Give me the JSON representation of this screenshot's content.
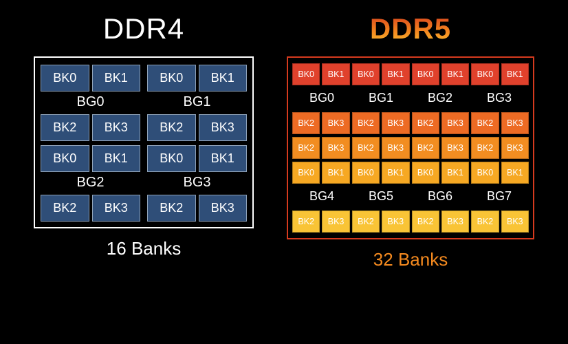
{
  "background_color": "#000000",
  "ddr4": {
    "title": "DDR4",
    "title_color": "#ffffff",
    "frame_border_color": "#ffffff",
    "cell_bg": "#2f4e78",
    "cell_border": "#8fa2b8",
    "cell_text_color": "#ffffff",
    "quadrants": [
      [
        {
          "bg_label": "BG0",
          "top": [
            "BK0",
            "BK1"
          ],
          "bottom": [
            "BK2",
            "BK3"
          ]
        },
        {
          "bg_label": "BG1",
          "top": [
            "BK0",
            "BK1"
          ],
          "bottom": [
            "BK2",
            "BK3"
          ]
        }
      ],
      [
        {
          "bg_label": "BG2",
          "top": [
            "BK0",
            "BK1"
          ],
          "bottom": [
            "BK2",
            "BK3"
          ]
        },
        {
          "bg_label": "BG3",
          "top": [
            "BK0",
            "BK1"
          ],
          "bottom": [
            "BK2",
            "BK3"
          ]
        }
      ]
    ],
    "footer": "16 Banks",
    "footer_color": "#ffffff"
  },
  "ddr5": {
    "title": "DDR5",
    "title_gradient": [
      "#d63a1e",
      "#f58a1f",
      "#f9c436"
    ],
    "frame_border_color": "#d63a1e",
    "row_colors": [
      "#e0412c",
      "#ed6b24",
      "#f28d21",
      "#f6a823",
      "#f6b62a",
      "#f9c436"
    ],
    "cell_text_color": "#ffffff",
    "sections": [
      {
        "top_labels": [
          "BK0",
          "BK1",
          "BK0",
          "BK1",
          "BK0",
          "BK1",
          "BK0",
          "BK1"
        ],
        "bg_labels": [
          "BG0",
          "BG1",
          "BG2",
          "BG3"
        ],
        "bottom_labels": [
          "BK2",
          "BK3",
          "BK2",
          "BK3",
          "BK2",
          "BK3",
          "BK2",
          "BK3"
        ],
        "top_color_index": 0,
        "bottom_color_index": 1
      },
      {
        "top_labels": [
          "BK0",
          "BK1",
          "BK0",
          "BK1",
          "BK0",
          "BK1",
          "BK0",
          "BK1"
        ],
        "bg_labels": [
          "BG4",
          "BG5",
          "BG6",
          "BG7"
        ],
        "bottom_labels": [
          "BK2",
          "BK3",
          "BK2",
          "BK3",
          "BK2",
          "BK3",
          "BK2",
          "BK3"
        ],
        "top_color_index": 3,
        "bottom_color_index": 5
      }
    ],
    "mid_row": {
      "labels": [
        "BK2",
        "BK3",
        "BK2",
        "BK3",
        "BK2",
        "BK3",
        "BK2",
        "BK3"
      ],
      "color_index": 2
    },
    "footer": "32 Banks",
    "footer_color": "#f58a1f"
  }
}
